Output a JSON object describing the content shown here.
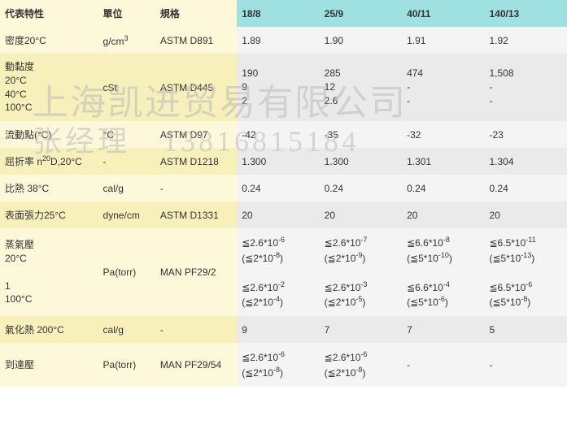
{
  "headers": {
    "property": "代表特性",
    "unit": "單位",
    "spec": "規格",
    "cols": [
      "18/8",
      "25/9",
      "40/11",
      "140/13"
    ]
  },
  "rows": [
    {
      "property": "密度20°C",
      "unit": "g/cm<sup>3</sup>",
      "spec": "ASTM D891",
      "vals": [
        "1.89",
        "1.90",
        "1.91",
        "1.92"
      ]
    },
    {
      "property": "動黏度<br>20°C<br>40°C<br>100°C",
      "unit": "cSt",
      "spec": "ASTM D445",
      "vals": [
        "190<br>9<br>2",
        "285<br>12<br>2.6",
        "474<br>-<br>-",
        "1,508<br>-<br>-"
      ],
      "multiline": true
    },
    {
      "property": "流動點(°C)",
      "unit": "°C",
      "spec": "ASTM D97",
      "vals": [
        "-42",
        "-35",
        "-32",
        "-23"
      ]
    },
    {
      "property": "屈折率 n<sup>20</sup>D,20°C",
      "unit": "-",
      "spec": "ASTM D1218",
      "vals": [
        "1.300",
        "1.300",
        "1.301",
        "1.304"
      ]
    },
    {
      "property": "比熱 38°C",
      "unit": "cal/g",
      "spec": "-",
      "vals": [
        "0.24",
        "0.24",
        "0.24",
        "0.24"
      ]
    },
    {
      "property": "表面張力25°C",
      "unit": "dyne/cm",
      "spec": "ASTM D1331",
      "vals": [
        "20",
        "20",
        "20",
        "20"
      ]
    },
    {
      "property": "蒸氣壓<br>20°C<br><br>1<br>100°C",
      "unit": "Pa(torr)",
      "spec": "MAN PF29/2",
      "vals": [
        "≦2.6*10<sup>-6</sup><br>(≦2*10<sup>-8</sup>)<br><br>≦2.6*10<sup>-2</sup><br>(≦2*10<sup>-4</sup>)",
        "≦2.6*10<sup>-7</sup><br>(≦2*10<sup>-9</sup>)<br><br>≦2.6*10<sup>-3</sup><br>(≦2*10<sup>-5</sup>)",
        "≦6.6*10<sup>-8</sup><br>(≦5*10<sup>-10</sup>)<br><br>≦6.6*10<sup>-4</sup><br>(≦5*10<sup>-6</sup>)",
        "≦6.5*10<sup>-11</sup><br>(≦5*10<sup>-13</sup>)<br><br>≦6.5*10<sup>-6</sup><br>(≦5*10<sup>-8</sup>)"
      ],
      "multiline": true
    },
    {
      "property": "氣化熱 200°C",
      "unit": "cal/g",
      "spec": "-",
      "vals": [
        "9",
        "7",
        "7",
        "5"
      ]
    },
    {
      "property": "到達壓",
      "unit": "Pa(torr)",
      "spec": "MAN PF29/54",
      "vals": [
        "≦2.6*10<sup>-6</sup><br>(≦2*10<sup>-8</sup>)",
        "≦2.6*10<sup>-6</sup><br>(≦2*10<sup>-8</sup>)",
        "-",
        "-"
      ],
      "multiline": true
    }
  ],
  "watermark": {
    "line1": "上海凯进贸易有限公司",
    "line2": "张经理　13816815184"
  }
}
